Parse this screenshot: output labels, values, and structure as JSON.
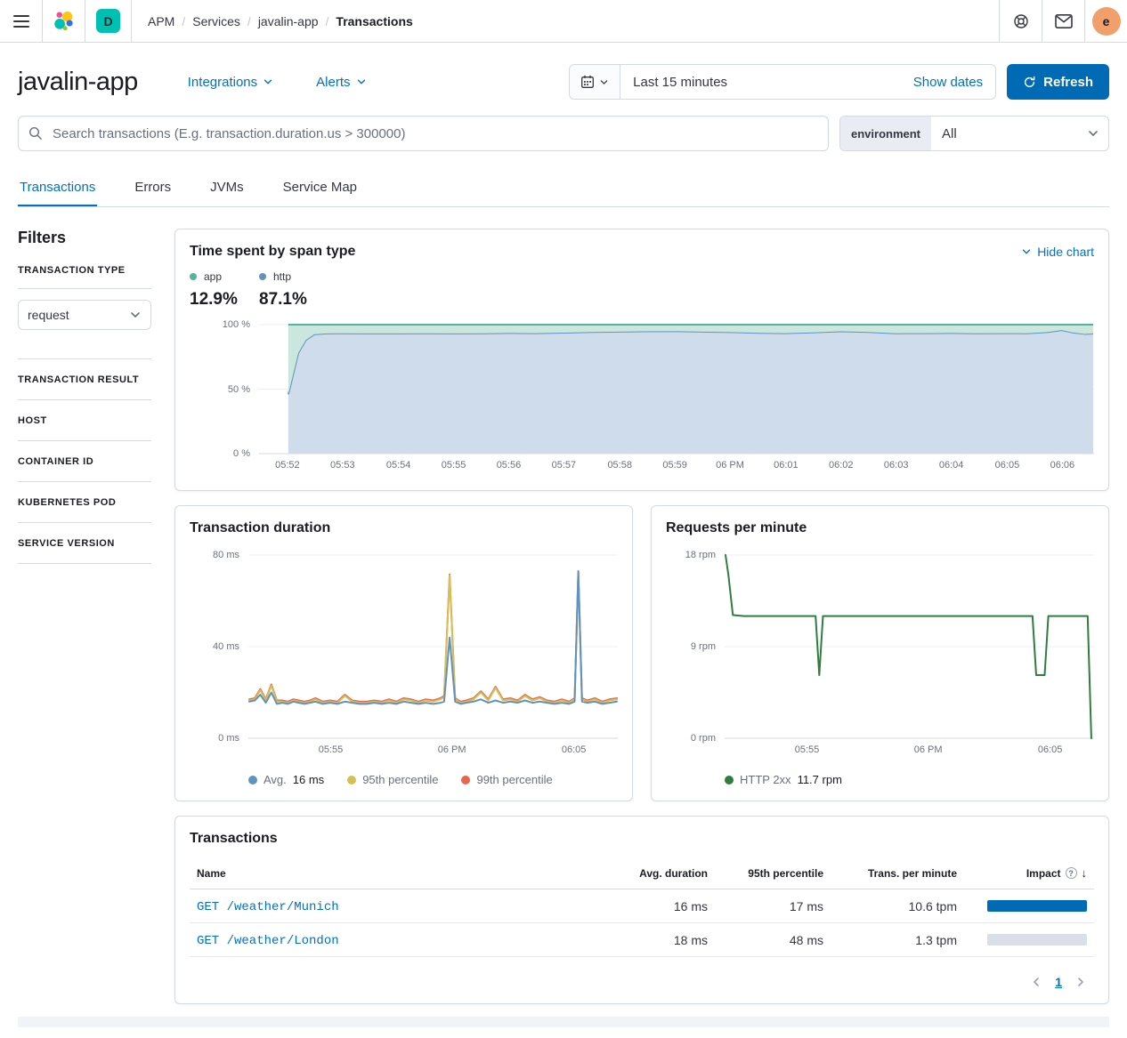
{
  "topbar": {
    "breadcrumbs": [
      "APM",
      "Services",
      "javalin-app",
      "Transactions"
    ],
    "deployment_badge": "D",
    "avatar_initial": "e"
  },
  "header": {
    "title": "javalin-app",
    "integrations_label": "Integrations",
    "alerts_label": "Alerts",
    "time_range": "Last 15 minutes",
    "show_dates_label": "Show dates",
    "refresh_label": "Refresh"
  },
  "search": {
    "placeholder": "Search transactions (E.g. transaction.duration.us > 300000)",
    "environment_label": "environment",
    "environment_value": "All"
  },
  "tabs": [
    {
      "label": "Transactions"
    },
    {
      "label": "Errors"
    },
    {
      "label": "JVMs"
    },
    {
      "label": "Service Map"
    }
  ],
  "filters": {
    "title": "Filters",
    "transaction_type_label": "TRANSACTION TYPE",
    "transaction_type_value": "request",
    "sections": [
      "TRANSACTION RESULT",
      "HOST",
      "CONTAINER ID",
      "KUBERNETES POD",
      "SERVICE VERSION"
    ]
  },
  "span_type_panel": {
    "title": "Time spent by span type",
    "hide_chart_label": "Hide chart",
    "legend": [
      {
        "label": "app",
        "value": "12.9%",
        "color": "#54B399"
      },
      {
        "label": "http",
        "value": "87.1%",
        "color": "#6092C0"
      }
    ]
  },
  "duration_panel": {
    "title": "Transaction duration",
    "legend": [
      {
        "label": "Avg.",
        "value": "16 ms",
        "color": "#6092C0"
      },
      {
        "label": "95th percentile",
        "value": "",
        "color": "#D6BF57"
      },
      {
        "label": "99th percentile",
        "value": "",
        "color": "#E7664C"
      }
    ]
  },
  "rpm_panel": {
    "title": "Requests per minute",
    "legend": [
      {
        "label": "HTTP 2xx",
        "value": "11.7 rpm",
        "color": "#2F7E3E"
      }
    ]
  },
  "transactions_panel": {
    "title": "Transactions",
    "columns": [
      "Name",
      "Avg. duration",
      "95th percentile",
      "Trans. per minute",
      "Impact"
    ],
    "rows": [
      {
        "name": "GET /weather/Munich",
        "avg_duration": "16 ms",
        "p95": "17 ms",
        "tpm": "10.6 tpm",
        "impact_pct": 100
      },
      {
        "name": "GET /weather/London",
        "avg_duration": "18 ms",
        "p95": "48 ms",
        "tpm": "1.3 tpm",
        "impact_pct": 0
      }
    ],
    "pagination_page": "1"
  },
  "icons": {
    "sort_desc": "↓",
    "help_question": "?"
  },
  "colors": {
    "link": "#0071C2",
    "primary_button": "#006BB4",
    "impact_bar": "#006BB4",
    "impact_track": "#D9DEE8",
    "badge_teal": "#00BFB3",
    "avatar_orange": "#F1A06B"
  },
  "chart_data": [
    {
      "type": "area",
      "stacked": true,
      "title": "Time spent by span type",
      "ylabel": "percent",
      "ylim": [
        0,
        100
      ],
      "yticks": [
        {
          "v": 100,
          "label": "100 %"
        },
        {
          "v": 50,
          "label": "50 %"
        },
        {
          "v": 0,
          "label": "0 %"
        }
      ],
      "xticks": [
        {
          "x": 0.034,
          "label": "05:52"
        },
        {
          "x": 0.1,
          "label": "05:53"
        },
        {
          "x": 0.167,
          "label": "05:54"
        },
        {
          "x": 0.233,
          "label": "05:55"
        },
        {
          "x": 0.299,
          "label": "05:56"
        },
        {
          "x": 0.365,
          "label": "05:57"
        },
        {
          "x": 0.432,
          "label": "05:58"
        },
        {
          "x": 0.498,
          "label": "05:59"
        },
        {
          "x": 0.564,
          "label": "06 PM"
        },
        {
          "x": 0.631,
          "label": "06:01"
        },
        {
          "x": 0.697,
          "label": "06:02"
        },
        {
          "x": 0.763,
          "label": "06:03"
        },
        {
          "x": 0.829,
          "label": "06:04"
        },
        {
          "x": 0.896,
          "label": "06:05"
        },
        {
          "x": 0.962,
          "label": "06:06"
        }
      ],
      "x": [
        0.034,
        0.04,
        0.046,
        0.055,
        0.065,
        0.08,
        0.1,
        0.13,
        0.167,
        0.2,
        0.233,
        0.27,
        0.3,
        0.33,
        0.365,
        0.4,
        0.432,
        0.46,
        0.5,
        0.53,
        0.564,
        0.6,
        0.631,
        0.66,
        0.697,
        0.73,
        0.763,
        0.8,
        0.829,
        0.86,
        0.896,
        0.92,
        0.945,
        0.962,
        0.975,
        0.99,
        1.0
      ],
      "series": [
        {
          "name": "http",
          "color": "#6092C0",
          "fill": "#CFDCEB",
          "values": [
            46,
            62,
            78,
            88,
            92.5,
            93.2,
            93.3,
            93.2,
            93.2,
            93.3,
            93.2,
            93.3,
            93.5,
            93.4,
            93.8,
            94.3,
            94.6,
            94.8,
            94.9,
            94.6,
            94.2,
            93.6,
            93.4,
            93.9,
            94.8,
            94.3,
            93.3,
            93.4,
            93.5,
            93.3,
            93.4,
            93.3,
            94.2,
            95.8,
            94.0,
            92.8,
            93.2
          ]
        },
        {
          "name": "app",
          "color": "#54B399",
          "fill": "#CBE6DC",
          "values": [
            54,
            38,
            22,
            12,
            7.5,
            6.8,
            6.7,
            6.8,
            6.8,
            6.7,
            6.8,
            6.7,
            6.5,
            6.6,
            6.2,
            5.7,
            5.4,
            5.2,
            5.1,
            5.4,
            5.8,
            6.4,
            6.6,
            6.1,
            5.2,
            5.7,
            6.7,
            6.6,
            6.5,
            6.7,
            6.6,
            6.7,
            5.8,
            4.2,
            6.0,
            7.2,
            6.8
          ]
        }
      ]
    },
    {
      "type": "line",
      "title": "Transaction duration",
      "ylabel": "ms",
      "ylim": [
        0,
        80
      ],
      "yticks": [
        {
          "v": 80,
          "label": "80 ms"
        },
        {
          "v": 40,
          "label": "40 ms"
        },
        {
          "v": 0,
          "label": "0 ms"
        }
      ],
      "xticks": [
        {
          "x": 0.223,
          "label": "05:55"
        },
        {
          "x": 0.551,
          "label": "06 PM"
        },
        {
          "x": 0.881,
          "label": "06:05"
        }
      ],
      "x": [
        0.0,
        0.015,
        0.03,
        0.045,
        0.06,
        0.075,
        0.09,
        0.105,
        0.12,
        0.135,
        0.15,
        0.165,
        0.18,
        0.2,
        0.22,
        0.24,
        0.26,
        0.28,
        0.3,
        0.32,
        0.34,
        0.36,
        0.38,
        0.4,
        0.42,
        0.44,
        0.46,
        0.48,
        0.5,
        0.52,
        0.53,
        0.545,
        0.56,
        0.575,
        0.59,
        0.61,
        0.63,
        0.65,
        0.67,
        0.69,
        0.71,
        0.73,
        0.75,
        0.77,
        0.79,
        0.81,
        0.83,
        0.85,
        0.87,
        0.885,
        0.895,
        0.905,
        0.92,
        0.94,
        0.96,
        0.98,
        1.0
      ],
      "series": [
        {
          "name": "99th percentile",
          "color": "#E7664C",
          "values": [
            17,
            17.5,
            21.5,
            17,
            23.5,
            16.5,
            16.5,
            16,
            17,
            16.5,
            16,
            16.5,
            17.5,
            16,
            16.5,
            16,
            19,
            16.5,
            16,
            16,
            16.5,
            16,
            17,
            16,
            17.5,
            17,
            16,
            17,
            16.5,
            17.5,
            18.5,
            71.5,
            17.5,
            16,
            16.5,
            17.5,
            20.5,
            17,
            22.5,
            17,
            17.5,
            16.5,
            19,
            17,
            18,
            16.5,
            16,
            17,
            16,
            17.5,
            72.5,
            17.5,
            16.5,
            17.5,
            16,
            17,
            17.5
          ]
        },
        {
          "name": "95th percentile",
          "color": "#D6BF57",
          "values": [
            16.5,
            17,
            21,
            16.5,
            23,
            16,
            16,
            15.5,
            16.5,
            16,
            15.5,
            16,
            17,
            15.5,
            16,
            15.5,
            18.5,
            16,
            15.5,
            15.5,
            16,
            15.5,
            16.5,
            15.5,
            17,
            16.5,
            15.5,
            16.5,
            16,
            17,
            18,
            71,
            17,
            15.5,
            16,
            17,
            20,
            16.5,
            22,
            16.5,
            17,
            16,
            18.5,
            16.5,
            17.5,
            16,
            15.5,
            16.5,
            15.5,
            17,
            72,
            17,
            16,
            17,
            15.5,
            16.5,
            17
          ]
        },
        {
          "name": "Avg.",
          "color": "#6092C0",
          "values": [
            16,
            16.5,
            19,
            15.5,
            20,
            15,
            15.5,
            15,
            16,
            15.5,
            15,
            15.5,
            16,
            15,
            15.5,
            15,
            16,
            15.5,
            15,
            15,
            15.5,
            15,
            15.5,
            15,
            16,
            15.5,
            15,
            15.5,
            15,
            15.5,
            16,
            44,
            16,
            15,
            15.5,
            16,
            17,
            15.5,
            16.5,
            15.5,
            16,
            15.5,
            16.5,
            15.5,
            16,
            15.5,
            15,
            15.5,
            15,
            16,
            73,
            16,
            15.5,
            16,
            15,
            15.5,
            16
          ]
        }
      ]
    },
    {
      "type": "line",
      "title": "Requests per minute",
      "ylabel": "rpm",
      "ylim": [
        0,
        18
      ],
      "yticks": [
        {
          "v": 18,
          "label": "18 rpm"
        },
        {
          "v": 9,
          "label": "9 rpm"
        },
        {
          "v": 0,
          "label": "0 rpm"
        }
      ],
      "xticks": [
        {
          "x": 0.223,
          "label": "05:55"
        },
        {
          "x": 0.551,
          "label": "06 PM"
        },
        {
          "x": 0.881,
          "label": "06:05"
        }
      ],
      "x": [
        0.0,
        0.008,
        0.02,
        0.05,
        0.1,
        0.15,
        0.2,
        0.245,
        0.255,
        0.265,
        0.275,
        0.3,
        0.35,
        0.4,
        0.45,
        0.5,
        0.55,
        0.6,
        0.65,
        0.7,
        0.75,
        0.8,
        0.835,
        0.845,
        0.855,
        0.868,
        0.878,
        0.89,
        0.92,
        0.95,
        0.97,
        0.985,
        0.995
      ],
      "series": [
        {
          "name": "HTTP 2xx",
          "color": "#2F7E3E",
          "values": [
            18,
            16,
            12.1,
            12,
            12,
            12,
            12,
            12,
            6.2,
            12,
            12,
            12,
            12,
            12,
            12,
            12,
            12,
            12,
            12,
            12,
            12,
            12,
            12,
            6.2,
            6.2,
            6.2,
            12,
            12,
            12,
            12,
            12,
            12,
            0
          ]
        }
      ]
    }
  ]
}
